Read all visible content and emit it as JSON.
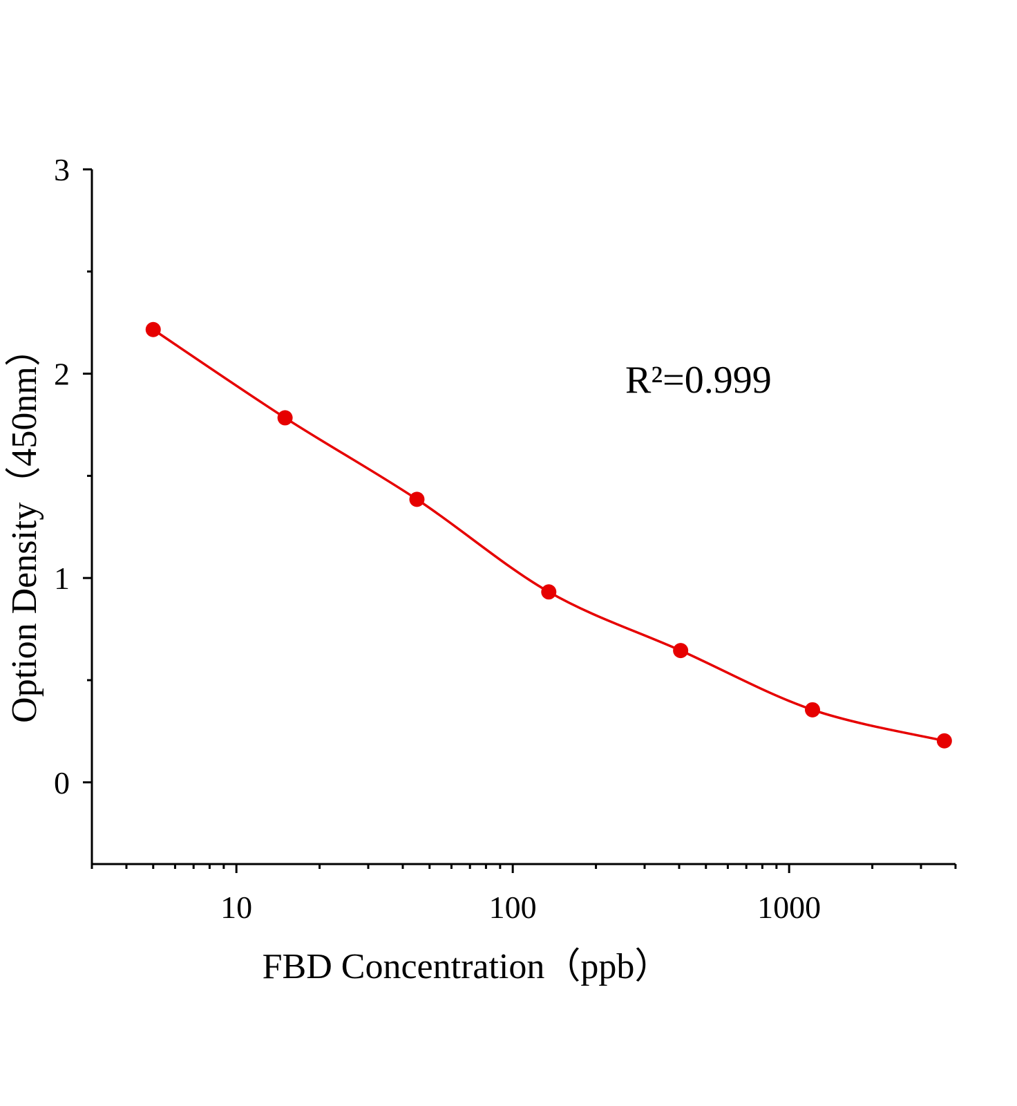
{
  "chart_data": {
    "type": "scatter",
    "xlabel": "FBD  Concentration（ppb）",
    "ylabel": "Option Density（450nm）",
    "annotation": "R²=0.999",
    "x": [
      5,
      15,
      45,
      135,
      405,
      1215,
      3645
    ],
    "series": [
      {
        "color": "#e60000",
        "values": [
          2.216,
          1.784,
          1.385,
          0.932,
          0.645,
          0.355,
          0.203
        ]
      }
    ],
    "xscale": "log",
    "xlim": [
      3,
      4000
    ],
    "xticks": [
      10,
      100,
      1000
    ],
    "ylim": [
      -0.4,
      3
    ],
    "yticks": [
      0,
      1,
      2,
      3
    ],
    "fit_line": true
  }
}
